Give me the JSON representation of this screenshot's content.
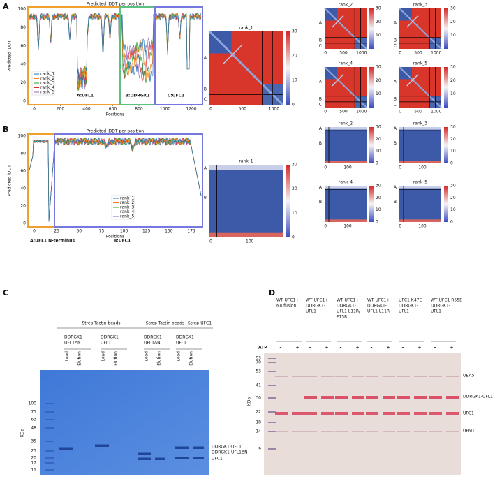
{
  "A": {
    "label": "A",
    "lddt": {
      "title": "Predicted lDDT per position",
      "ylabel": "Predicted lDDT",
      "xlabel": "Positions",
      "yticks": [
        "0",
        "20",
        "40",
        "60",
        "80",
        "100"
      ],
      "xticks": [
        "0",
        "200",
        "400",
        "600",
        "800",
        "1000",
        "1200"
      ],
      "legend": [
        "rank_1",
        "rank_2",
        "rank_3",
        "rank_4",
        "rank_5"
      ],
      "regions": [
        "A:UFL1",
        "B:DDRGK1",
        "C:UFC1"
      ]
    },
    "pae_main": {
      "title": "rank_1",
      "chains": [
        "A",
        "B",
        "C"
      ],
      "xticks": [
        "0",
        "500",
        "1000"
      ],
      "cbar": [
        "0",
        "10",
        "20",
        "30"
      ]
    },
    "pae_small": {
      "titles": [
        "rank_2",
        "rank_3",
        "rank_4",
        "rank_5"
      ],
      "chains": [
        "A",
        "B",
        "C"
      ],
      "xticks": [
        "0",
        "500",
        "1000"
      ],
      "cbar": [
        "10",
        "20",
        "30"
      ]
    }
  },
  "B": {
    "label": "B",
    "lddt": {
      "title": "Predicted lDDT per position",
      "ylabel": "Predicted lDDT",
      "xlabel": "Positions",
      "yticks": [
        "0",
        "20",
        "40",
        "60",
        "80",
        "100"
      ],
      "xticks": [
        "0",
        "25",
        "50",
        "75",
        "100",
        "125",
        "150",
        "175"
      ],
      "legend": [
        "rank_1",
        "rank_2",
        "rank_3",
        "rank_4",
        "rank_5"
      ],
      "regions": [
        "A:UFL1 N-terminus",
        "B:UFC1"
      ]
    },
    "pae_main": {
      "title": "rank_1",
      "chains": [
        "A",
        "B"
      ],
      "xticks": [
        "0",
        "100"
      ],
      "cbar": [
        "0",
        "10",
        "20",
        "30"
      ]
    },
    "pae_small": {
      "titles": [
        "rank_2",
        "rank_3",
        "rank_4",
        "rank_5"
      ],
      "chains": [
        "A",
        "B"
      ],
      "xticks": [
        "0",
        "100"
      ],
      "cbar": [
        "0",
        "10",
        "20",
        "30"
      ]
    }
  },
  "C": {
    "label": "C",
    "headers": [
      "Strep-Tactin beads",
      "Strep-Tactin beads+Strep-UFC1"
    ],
    "groups": [
      [
        "DDRGK1-",
        "UFL1ΔN"
      ],
      [
        "DDRGK1-",
        "UFL1"
      ],
      [
        "DDRGK1-",
        "UFL1ΔN"
      ],
      [
        "DDRGK1-",
        "UFL1"
      ]
    ],
    "lanes": [
      "Load",
      "Elution"
    ],
    "ylabel": "KDa",
    "markers": [
      "100",
      "75",
      "63",
      "48",
      "35",
      "25",
      "20",
      "17",
      "11"
    ],
    "bands": [
      "DDRGK1-UFL1",
      "DDRGK1-UFL1ΔN",
      "UFC1"
    ]
  },
  "D": {
    "label": "D",
    "groups": [
      [
        "WT UFC1+",
        "No fusion"
      ],
      [
        "WT UFC1+",
        "DDRGK1-",
        "UFL1"
      ],
      [
        "WT UFC1+",
        "DDRGK1-",
        "UFL1 L11R/",
        "F15R"
      ],
      [
        "WT UFC1+",
        "DDRGK1-",
        "UFL1 L11R"
      ],
      [
        "UFC1 K47E",
        "DDRGK1-",
        "UFL1"
      ],
      [
        "WT UFC1 R55E",
        "DDRGK1-",
        "UFL1"
      ]
    ],
    "atp": "ATP",
    "signs": [
      "–",
      "+"
    ],
    "ylabel": "KDa",
    "markers": [
      "93",
      "70",
      "53",
      "41",
      "30",
      "22",
      "18",
      "14",
      "9"
    ],
    "bands": [
      "UBA5",
      "DDRGK1-UFL1",
      "UFC1",
      "UFM1"
    ]
  }
}
